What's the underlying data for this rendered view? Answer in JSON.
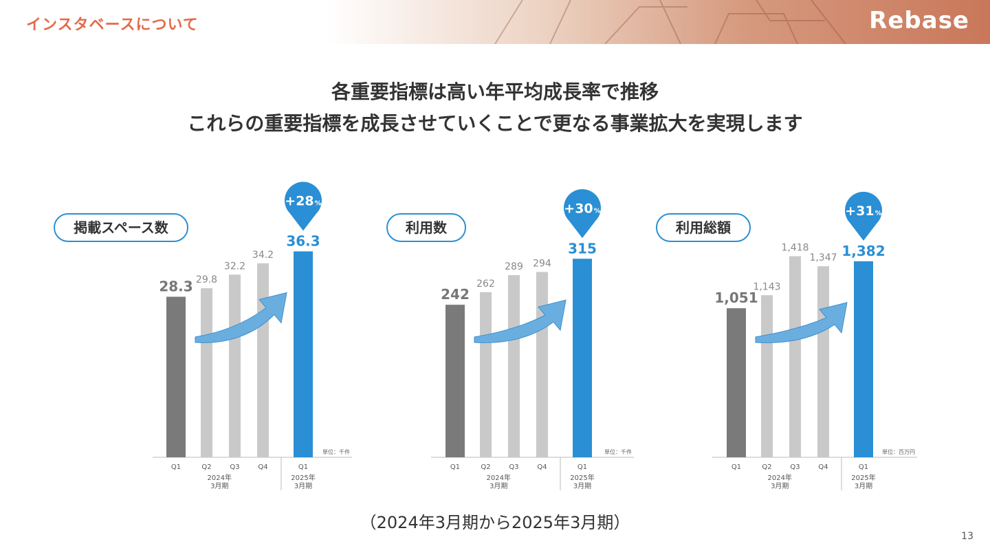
{
  "header": {
    "section_title": "インスタベースについて",
    "logo": "Rebase"
  },
  "headline": {
    "line1": "各重要指標は高い年平均成長率で推移",
    "line2": "これらの重要指標を成長させていくことで更なる事業拡大を実現します"
  },
  "footnote": "（2024年3月期から2025年3月期）",
  "page_number": "13",
  "colors": {
    "accent": "#2a8fd4",
    "dark_bar": "#7a7a7a",
    "light_bar": "#c9c9c9",
    "arrow": "#6aaee0",
    "brand": "#e36a4a"
  },
  "chart_data": [
    {
      "type": "bar",
      "title": "掲載スペース数",
      "unit": "単位：千件",
      "categories": [
        "Q1",
        "Q2",
        "Q3",
        "Q4",
        "Q1"
      ],
      "values": [
        28.3,
        29.8,
        32.2,
        34.2,
        36.3
      ],
      "value_labels": [
        "28.3",
        "29.8",
        "32.2",
        "34.2",
        "36.3"
      ],
      "groups": [
        {
          "label": [
            "2024年",
            "3月期"
          ]
        },
        {
          "label": [
            "2025年",
            "3月期"
          ]
        }
      ],
      "growth": {
        "value": "+28",
        "suffix": "%"
      },
      "ylim": [
        0,
        40
      ]
    },
    {
      "type": "bar",
      "title": "利用数",
      "unit": "単位：千件",
      "categories": [
        "Q1",
        "Q2",
        "Q3",
        "Q4",
        "Q1"
      ],
      "values": [
        242,
        262,
        289,
        294,
        315
      ],
      "value_labels": [
        "242",
        "262",
        "289",
        "294",
        "315"
      ],
      "groups": [
        {
          "label": [
            "2024年",
            "3月期"
          ]
        },
        {
          "label": [
            "2025年",
            "3月期"
          ]
        }
      ],
      "growth": {
        "value": "+30",
        "suffix": "%"
      },
      "ylim": [
        0,
        360
      ]
    },
    {
      "type": "bar",
      "title": "利用総額",
      "unit": "単位：百万円",
      "categories": [
        "Q1",
        "Q2",
        "Q3",
        "Q4",
        "Q1"
      ],
      "values": [
        1051,
        1143,
        1418,
        1347,
        1382
      ],
      "value_labels": [
        "1,051",
        "1,143",
        "1,418",
        "1,347",
        "1,382"
      ],
      "groups": [
        {
          "label": [
            "2024年",
            "3月期"
          ]
        },
        {
          "label": [
            "2025年",
            "3月期"
          ]
        }
      ],
      "growth": {
        "value": "+31",
        "suffix": "%"
      },
      "ylim": [
        0,
        1600
      ]
    }
  ]
}
